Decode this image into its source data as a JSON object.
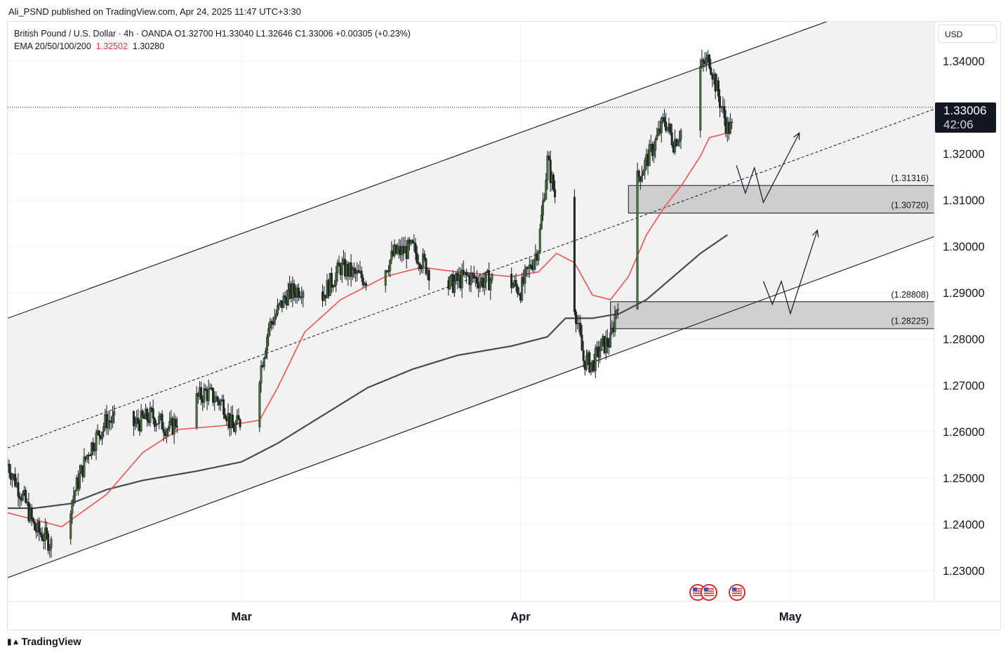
{
  "header": {
    "publisher_line": "Ali_PSND published on TradingView.com, Apr 24, 2025 11:47 UTC+3:30"
  },
  "legend": {
    "symbol_line": "British Pound / U.S. Dollar · 4h · OANDA  O1.32700  H1.33040  L1.32646  C1.33006  +0.00305 (+0.23%)",
    "ema_label": "EMA 20/50/100/200",
    "ema_fast_value": "1.32502",
    "ema_slow_value": "1.30280"
  },
  "price_axis": {
    "currency": "USD",
    "current_price": "1.33006",
    "countdown": "42:06"
  },
  "footer": {
    "brand": "TradingView",
    "brand_icon": "tradingview-logo-icon"
  },
  "colors": {
    "up_candle": "#26a69a",
    "candle_body": "#4a6b3a",
    "wick": "#131722",
    "ema_fast": "#ef5350",
    "ema_slow": "#4a4a4a",
    "zone_fill": "#c8c8c8",
    "channel_fill": "#f2f2f2",
    "grid": "#eef0f3",
    "event_flag": "#d32f2f"
  },
  "event_icons": [
    "us-flag-icon",
    "gb-flag-icon",
    "us-flag-icon"
  ],
  "chart_data": {
    "type": "candlestick",
    "symbol": "GBPUSD",
    "timeframe": "4h",
    "ylim": [
      1.2235,
      1.3485
    ],
    "yticks": [
      "1.23000",
      "1.24000",
      "1.25000",
      "1.26000",
      "1.27000",
      "1.28000",
      "1.29000",
      "1.30000",
      "1.31000",
      "1.32000",
      "1.33000",
      "1.34000"
    ],
    "xticks": [
      "Mar",
      "Apr",
      "May"
    ],
    "x_domain_days": [
      "2025-02-03",
      "2025-05-17"
    ],
    "xtick_dates": [
      "2025-03-01",
      "2025-04-01",
      "2025-05-01"
    ],
    "last_bar_date": "2025-04-24",
    "price_path": [
      [
        "2025-02-03",
        1.253
      ],
      [
        "2025-02-05",
        1.2445
      ],
      [
        "2025-02-06",
        1.239
      ],
      [
        "2025-02-07",
        1.2375
      ],
      [
        "2025-02-08",
        1.2355
      ],
      [
        "2025-02-10",
        1.2445
      ],
      [
        "2025-02-12",
        1.256
      ],
      [
        "2025-02-14",
        1.2625
      ],
      [
        "2025-02-17",
        1.2615
      ],
      [
        "2025-02-19",
        1.2635
      ],
      [
        "2025-02-21",
        1.2605
      ],
      [
        "2025-02-23",
        1.2655
      ],
      [
        "2025-02-25",
        1.2685
      ],
      [
        "2025-02-27",
        1.266
      ],
      [
        "2025-02-28",
        1.2605
      ],
      [
        "2025-03-01",
        1.2625
      ],
      [
        "2025-03-03",
        1.2725
      ],
      [
        "2025-03-04",
        1.2825
      ],
      [
        "2025-03-06",
        1.2895
      ],
      [
        "2025-03-08",
        1.2915
      ],
      [
        "2025-03-10",
        1.2895
      ],
      [
        "2025-03-12",
        1.2955
      ],
      [
        "2025-03-14",
        1.2935
      ],
      [
        "2025-03-16",
        1.2925
      ],
      [
        "2025-03-18",
        1.2985
      ],
      [
        "2025-03-20",
        1.2995
      ],
      [
        "2025-03-22",
        1.2945
      ],
      [
        "2025-03-24",
        1.2915
      ],
      [
        "2025-03-26",
        1.2935
      ],
      [
        "2025-03-28",
        1.2925
      ],
      [
        "2025-03-30",
        1.2935
      ],
      [
        "2025-04-01",
        1.2905
      ],
      [
        "2025-04-03",
        1.3
      ],
      [
        "2025-04-04",
        1.3185
      ],
      [
        "2025-04-05",
        1.3095
      ],
      [
        "2025-04-06",
        1.299
      ],
      [
        "2025-04-07",
        1.2875
      ],
      [
        "2025-04-08",
        1.2755
      ],
      [
        "2025-04-09",
        1.2745
      ],
      [
        "2025-04-10",
        1.2785
      ],
      [
        "2025-04-11",
        1.2795
      ],
      [
        "2025-04-12",
        1.2905
      ],
      [
        "2025-04-13",
        1.3005
      ],
      [
        "2025-04-14",
        1.3145
      ],
      [
        "2025-04-15",
        1.3185
      ],
      [
        "2025-04-16",
        1.3225
      ],
      [
        "2025-04-17",
        1.3275
      ],
      [
        "2025-04-18",
        1.3225
      ],
      [
        "2025-04-19",
        1.3255
      ],
      [
        "2025-04-20",
        1.3285
      ],
      [
        "2025-04-21",
        1.3385
      ],
      [
        "2025-04-22",
        1.3405
      ],
      [
        "2025-04-23",
        1.3325
      ],
      [
        "2025-04-24",
        1.3255
      ]
    ],
    "ema_fast_path": [
      [
        "2025-02-03",
        1.2425
      ],
      [
        "2025-02-09",
        1.2395
      ],
      [
        "2025-02-14",
        1.2465
      ],
      [
        "2025-02-18",
        1.2555
      ],
      [
        "2025-02-22",
        1.2605
      ],
      [
        "2025-02-28",
        1.2615
      ],
      [
        "2025-03-03",
        1.2625
      ],
      [
        "2025-03-05",
        1.2695
      ],
      [
        "2025-03-08",
        1.2815
      ],
      [
        "2025-03-12",
        1.2885
      ],
      [
        "2025-03-17",
        1.2935
      ],
      [
        "2025-03-21",
        1.2955
      ],
      [
        "2025-03-25",
        1.2945
      ],
      [
        "2025-03-31",
        1.2935
      ],
      [
        "2025-04-03",
        1.2945
      ],
      [
        "2025-04-05",
        1.2985
      ],
      [
        "2025-04-07",
        1.2965
      ],
      [
        "2025-04-09",
        1.2895
      ],
      [
        "2025-04-11",
        1.2885
      ],
      [
        "2025-04-13",
        1.2935
      ],
      [
        "2025-04-15",
        1.3025
      ],
      [
        "2025-04-17",
        1.3085
      ],
      [
        "2025-04-19",
        1.3135
      ],
      [
        "2025-04-21",
        1.3195
      ],
      [
        "2025-04-22",
        1.3235
      ],
      [
        "2025-04-24",
        1.3245
      ]
    ],
    "ema_slow_path": [
      [
        "2025-02-03",
        1.2435
      ],
      [
        "2025-02-06",
        1.2435
      ],
      [
        "2025-02-10",
        1.2445
      ],
      [
        "2025-02-14",
        1.2475
      ],
      [
        "2025-02-18",
        1.2495
      ],
      [
        "2025-02-24",
        1.2515
      ],
      [
        "2025-03-01",
        1.2535
      ],
      [
        "2025-03-05",
        1.2575
      ],
      [
        "2025-03-10",
        1.2635
      ],
      [
        "2025-03-15",
        1.2695
      ],
      [
        "2025-03-20",
        1.2735
      ],
      [
        "2025-03-25",
        1.2765
      ],
      [
        "2025-03-31",
        1.2785
      ],
      [
        "2025-04-04",
        1.2805
      ],
      [
        "2025-04-06",
        1.2845
      ],
      [
        "2025-04-09",
        1.2845
      ],
      [
        "2025-04-12",
        1.2855
      ],
      [
        "2025-04-15",
        1.2885
      ],
      [
        "2025-04-18",
        1.2935
      ],
      [
        "2025-04-21",
        1.2985
      ],
      [
        "2025-04-24",
        1.3025
      ]
    ],
    "channel": {
      "upper": [
        [
          "2025-02-03",
          1.2845
        ],
        [
          "2025-05-05",
          1.3485
        ]
      ],
      "lower": [
        [
          "2025-02-03",
          1.2285
        ],
        [
          "2025-05-21",
          1.305
        ]
      ],
      "midline": [
        [
          "2025-02-03",
          1.2565
        ],
        [
          "2025-05-21",
          1.3325
        ]
      ]
    },
    "zones": [
      {
        "name": "resistance-support-zone",
        "top": 1.31316,
        "bottom": 1.3072,
        "top_label": "(1.31316)",
        "bottom_label": "(1.30720)",
        "from": "2025-04-13"
      },
      {
        "name": "lower-demand-zone",
        "top": 1.28808,
        "bottom": 1.28225,
        "top_label": "(1.28808)",
        "bottom_label": "(1.28225)",
        "from": "2025-04-11"
      }
    ],
    "scenarios": [
      [
        [
          "2025-04-25",
          1.3175
        ],
        [
          "2025-04-26",
          1.3115
        ],
        [
          "2025-04-27",
          1.317
        ],
        [
          "2025-04-28",
          1.3095
        ],
        [
          "2025-05-02",
          1.3245
        ]
      ],
      [
        [
          "2025-04-28",
          1.2925
        ],
        [
          "2025-04-29",
          1.2875
        ],
        [
          "2025-04-30",
          1.2925
        ],
        [
          "2025-05-01",
          1.2855
        ],
        [
          "2025-05-04",
          1.3035
        ]
      ]
    ],
    "current_price_line": 1.33006
  }
}
